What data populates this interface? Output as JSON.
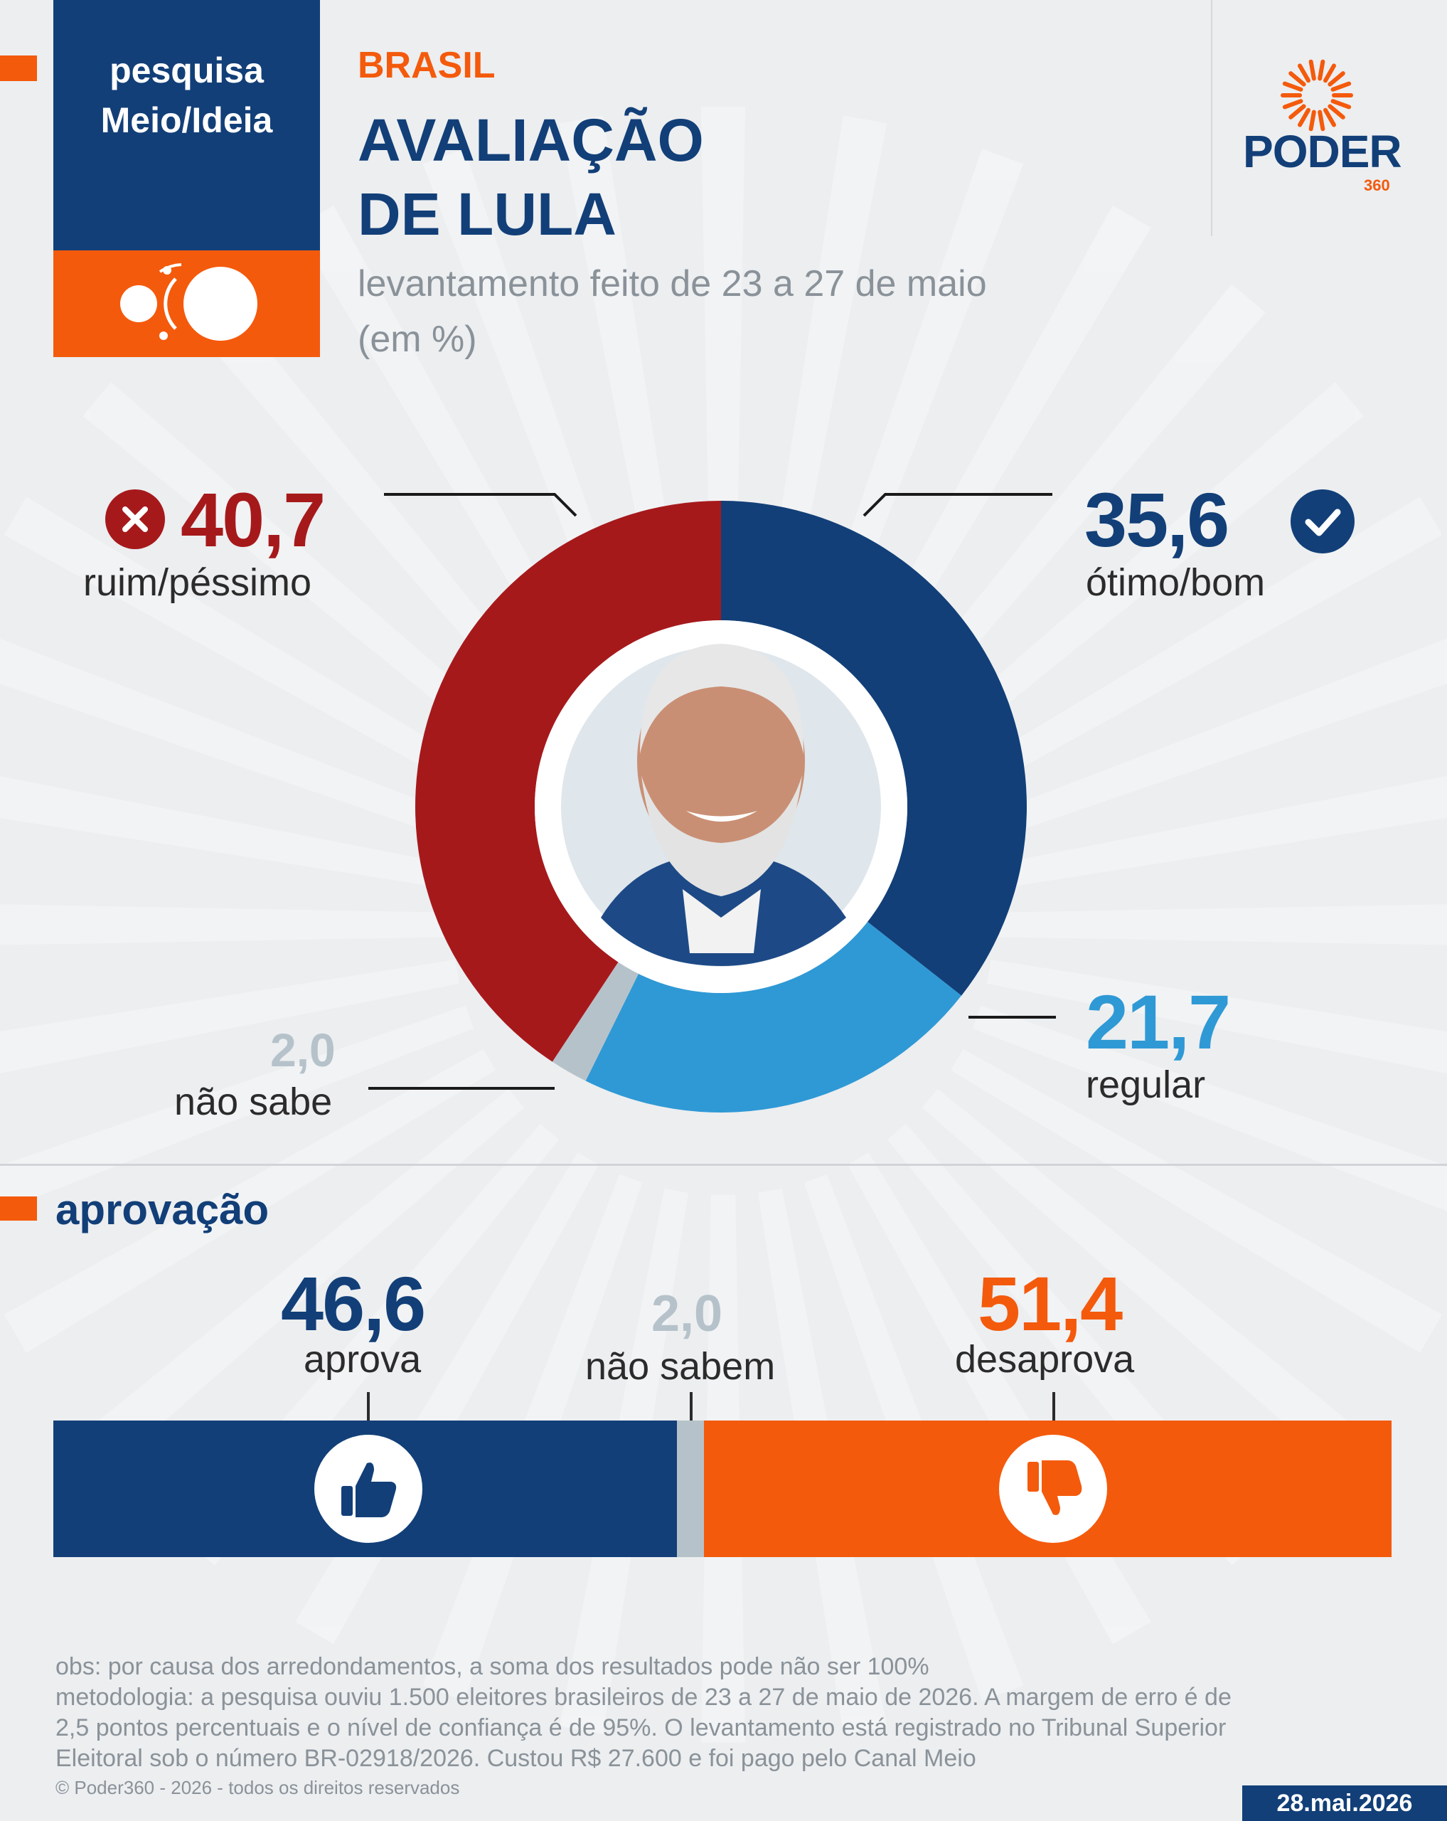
{
  "header": {
    "badge_line1": "pesquisa",
    "badge_line2": "Meio/Ideia",
    "kicker": "BRASIL",
    "title_line1": "AVALIAÇÃO",
    "title_line2": "DE LULA",
    "subtitle_line1": "levantamento feito de 23 a 27 de maio",
    "subtitle_line2": "(em %)",
    "logo_text": "PODER",
    "logo_sub": "360"
  },
  "chart_data": [
    {
      "type": "pie",
      "title": "AVALIAÇÃO DE LULA",
      "categories": [
        "ótimo/bom",
        "regular",
        "não sabe",
        "ruim/péssimo"
      ],
      "values": [
        35.6,
        21.7,
        2.0,
        40.7
      ],
      "value_labels": [
        "35,6",
        "21,7",
        "2,0",
        "40,7"
      ],
      "colors": [
        "#123f78",
        "#2f99d5",
        "#b6c2ca",
        "#a6191b"
      ]
    },
    {
      "type": "bar",
      "title": "aprovação",
      "categories": [
        "aprova",
        "não sabem",
        "desaprova"
      ],
      "values": [
        46.6,
        2.0,
        51.4
      ],
      "value_labels": [
        "46,6",
        "2,0",
        "51,4"
      ],
      "colors": [
        "#123f78",
        "#b6c2ca",
        "#f45a0c"
      ]
    }
  ],
  "approval": {
    "section_title": "aprovação"
  },
  "footer": {
    "obs": "obs: por causa dos arredondamentos, a soma dos resultados pode não ser 100%",
    "method1": "metodologia: a pesquisa ouviu 1.500 eleitores brasileiros de 23 a 27 de maio de 2026. A margem de erro é de",
    "method2": "2,5 pontos percentuais e o nível de confiança é de 95%. O levantamento está registrado no Tribunal Superior",
    "method3": "Eleitoral sob o número BR-02918/2026. Custou R$ 27.600 e foi pago pelo Canal Meio",
    "copyright": "© Poder360 - 2026 - todos os direitos reservados",
    "date": "28.mai.2026"
  },
  "icons": {
    "bad": "x-circle-icon",
    "good": "check-circle-icon",
    "approve": "thumbs-up-icon",
    "disapprove": "thumbs-down-icon"
  }
}
